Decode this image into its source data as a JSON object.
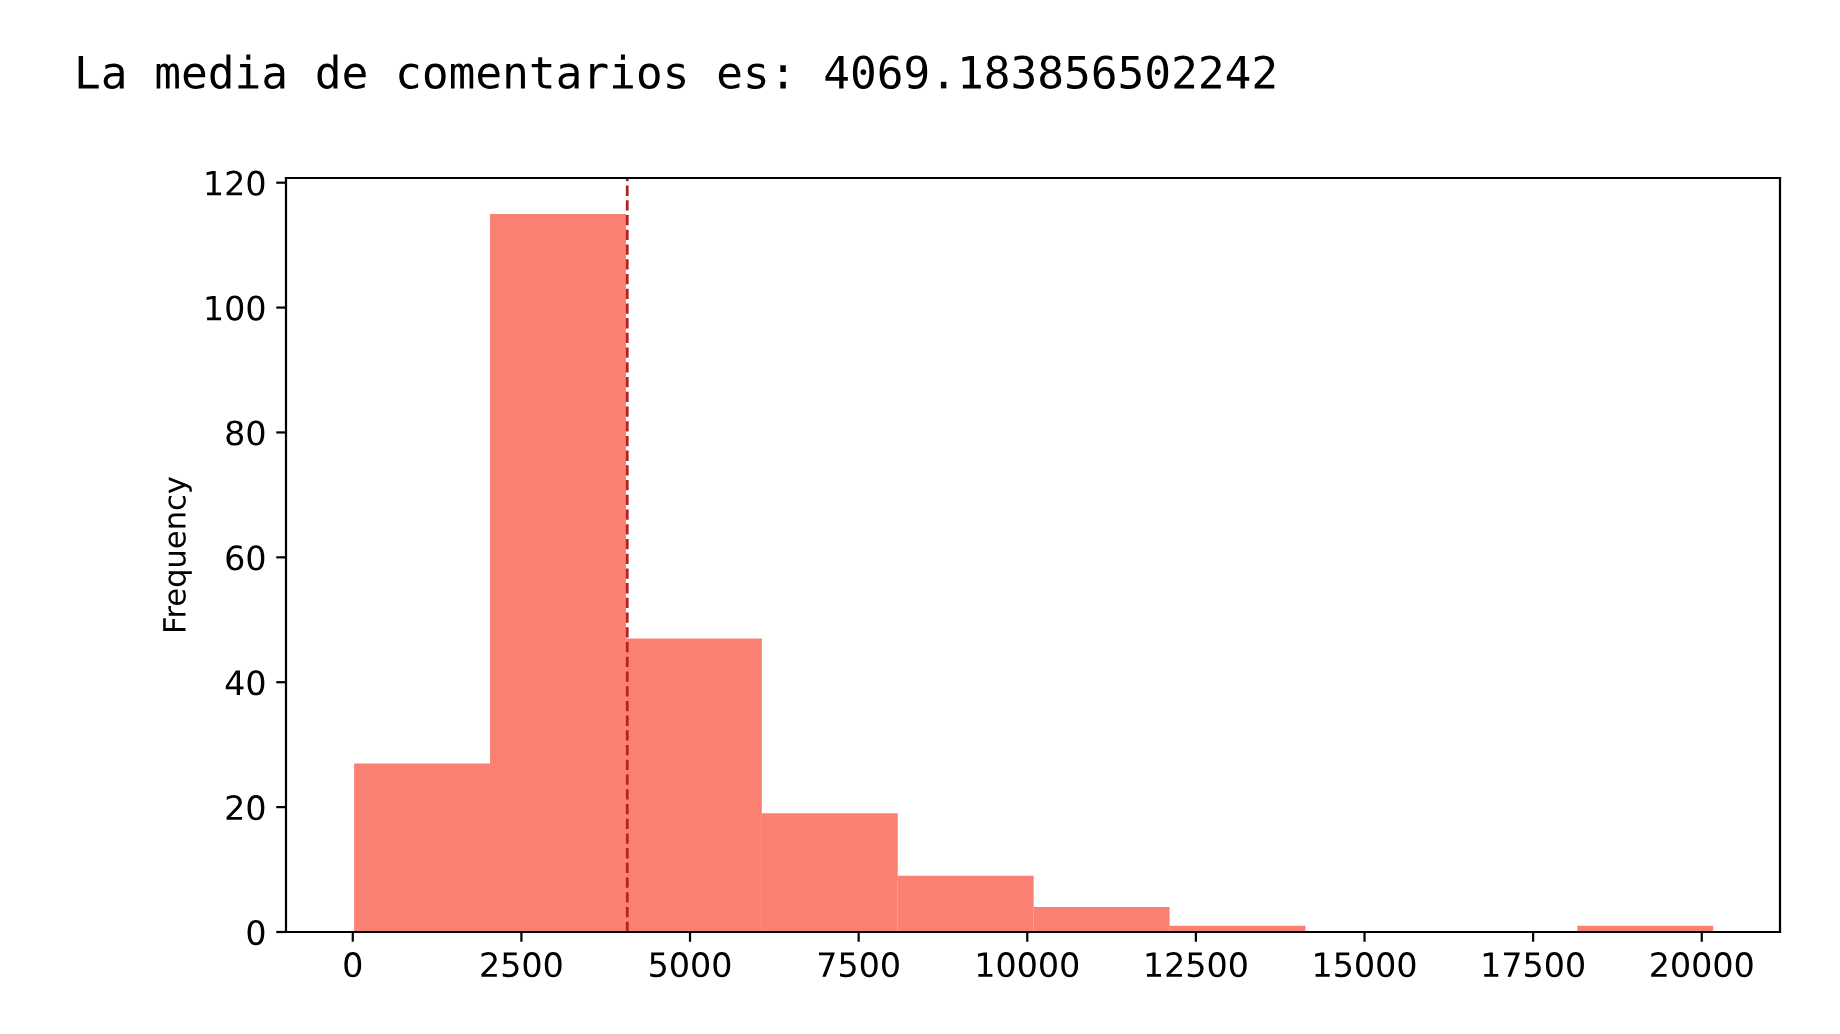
{
  "chart_data": {
    "type": "histogram",
    "title": "La media de comentarios es: 4069.183856502242",
    "ylabel": "Frequency",
    "bins": [
      20,
      2035,
      4050,
      6065,
      8080,
      10095,
      12110,
      14125,
      16140,
      18155,
      20170
    ],
    "values": [
      27,
      115,
      47,
      19,
      9,
      4,
      1,
      0,
      0,
      1
    ],
    "color": "#fa8072",
    "xlim": [
      -990,
      21160
    ],
    "xticks": [
      0,
      2500,
      5000,
      7500,
      10000,
      12500,
      15000,
      17500,
      20000
    ],
    "ylim": [
      0,
      120.75
    ],
    "yticks": [
      0,
      20,
      40,
      60,
      80,
      100,
      120
    ],
    "ref_lines": [
      {
        "axis": "x",
        "value": 4069.183856502242,
        "color": "#b22222",
        "line_style": "dashed"
      }
    ],
    "grid": false,
    "legend": false
  }
}
